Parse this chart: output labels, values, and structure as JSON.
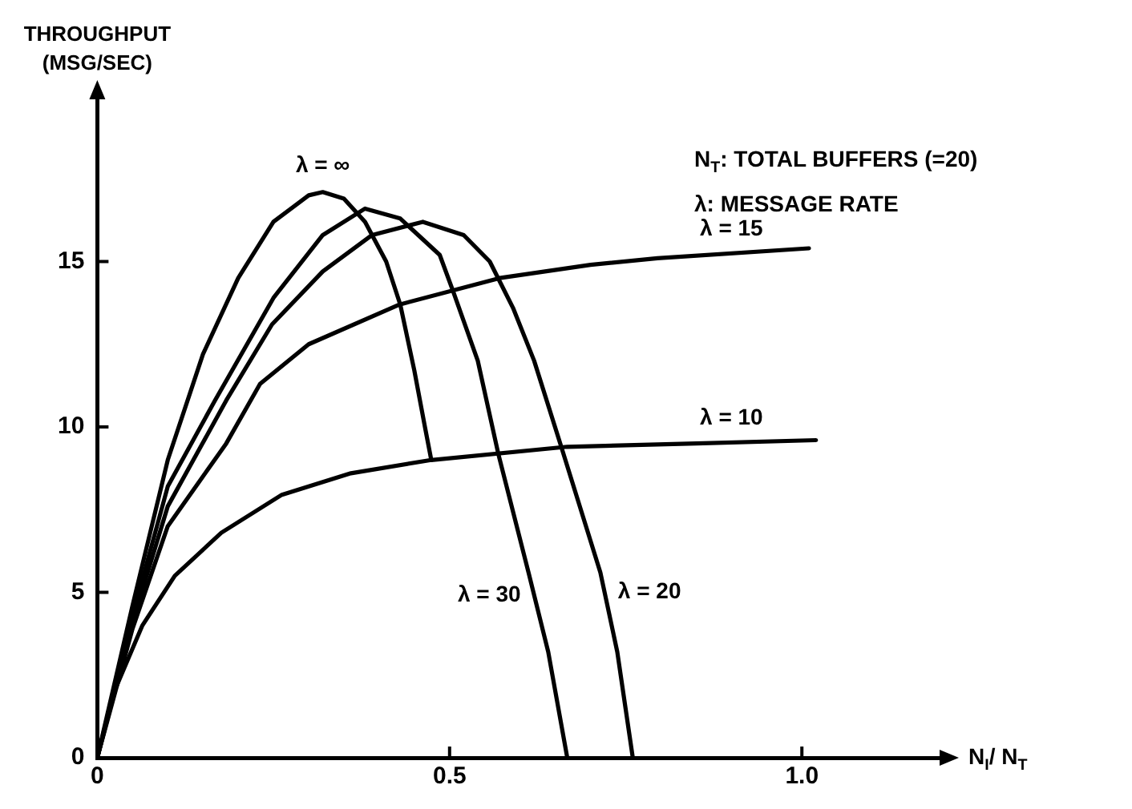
{
  "chart_data": {
    "type": "line",
    "xlabel": "N$_{I}$/ N$_{T}$",
    "ylabel": "THROUGHPUT (MSG/SEC)",
    "annotations": [
      "N$_{T}$: TOTAL BUFFERS (=20)",
      "λ: MESSAGE RATE"
    ],
    "xlim": [
      0,
      1.2
    ],
    "ylim": [
      0,
      20
    ],
    "xticks": [
      0,
      0.5,
      {
        "value": 1,
        "label": "1.0"
      }
    ],
    "yticks": [
      0,
      5,
      10,
      15
    ],
    "grid": false,
    "legend": false,
    "marker": "none",
    "line_style": "solid",
    "series": [
      {
        "name": "λ = ∞",
        "color": "#000000",
        "x": [
          0,
          0.05,
          0.1,
          0.15,
          0.2,
          0.25,
          0.3,
          0.32,
          0.35,
          0.38,
          0.41,
          0.43,
          0.45,
          0.465,
          0.474
        ],
        "values": [
          0,
          4.6,
          9.0,
          12.2,
          14.5,
          16.2,
          17.0,
          17.1,
          16.9,
          16.2,
          15.0,
          13.7,
          11.7,
          10.0,
          9.0
        ]
      },
      {
        "name": "λ = 30",
        "color": "#000000",
        "x": [
          0,
          0.05,
          0.1,
          0.167,
          0.25,
          0.32,
          0.38,
          0.43,
          0.486,
          0.505,
          0.54,
          0.569,
          0.612,
          0.64,
          0.667
        ],
        "values": [
          0,
          4.3,
          8.2,
          10.8,
          13.9,
          15.8,
          16.6,
          16.3,
          15.2,
          14.1,
          12.0,
          9.2,
          5.6,
          3.2,
          0
        ]
      },
      {
        "name": "λ = 20",
        "color": "#000000",
        "x": [
          0,
          0.05,
          0.1,
          0.183,
          0.248,
          0.32,
          0.39,
          0.462,
          0.52,
          0.557,
          0.59,
          0.62,
          0.66,
          0.714,
          0.738,
          0.76
        ],
        "values": [
          0,
          4.1,
          7.6,
          10.8,
          13.1,
          14.7,
          15.8,
          16.2,
          15.8,
          15.0,
          13.6,
          12.0,
          9.3,
          5.6,
          3.2,
          0
        ]
      },
      {
        "name": "λ = 15",
        "color": "#000000",
        "x": [
          0,
          0.05,
          0.1,
          0.183,
          0.231,
          0.3,
          0.429,
          0.571,
          0.7,
          0.795,
          1.01
        ],
        "values": [
          0,
          3.9,
          7.0,
          9.5,
          11.3,
          12.5,
          13.7,
          14.5,
          14.9,
          15.1,
          15.4
        ]
      },
      {
        "name": "λ = 10",
        "color": "#000000",
        "x": [
          0,
          0.024,
          0.064,
          0.11,
          0.176,
          0.262,
          0.36,
          0.474,
          0.667,
          0.85,
          1.02
        ],
        "values": [
          0,
          2.0,
          4.0,
          5.5,
          6.8,
          7.95,
          8.6,
          9.0,
          9.4,
          9.5,
          9.6
        ]
      }
    ]
  }
}
